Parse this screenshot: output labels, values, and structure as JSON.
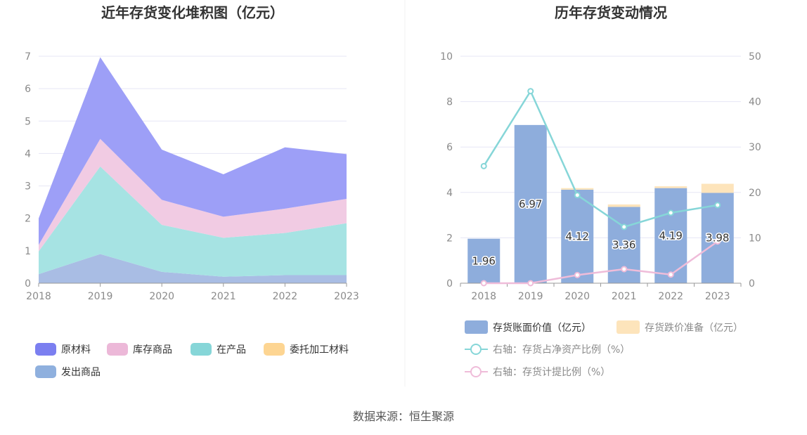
{
  "source_text": "数据来源：恒生聚源",
  "chart_data": [
    {
      "type": "area",
      "stacked": true,
      "title": "近年存货变化堆积图（亿元）",
      "categories": [
        "2018",
        "2019",
        "2020",
        "2021",
        "2022",
        "2023"
      ],
      "ylim": [
        0,
        7
      ],
      "yticks": [
        0,
        1,
        2,
        3,
        4,
        5,
        6,
        7
      ],
      "grid": true,
      "legend_position": "bottom",
      "series": [
        {
          "name": "发出商品",
          "values": [
            0.28,
            0.9,
            0.35,
            0.2,
            0.25,
            0.25
          ],
          "color": "#a9bde4"
        },
        {
          "name": "委托加工材料",
          "values": [
            0.0,
            0.0,
            0.0,
            0.0,
            0.0,
            0.0
          ],
          "color": "#fdd592"
        },
        {
          "name": "在产品",
          "values": [
            0.7,
            2.7,
            1.45,
            1.2,
            1.3,
            1.6
          ],
          "color": "#a6e3e3"
        },
        {
          "name": "库存商品",
          "values": [
            0.2,
            0.85,
            0.77,
            0.65,
            0.75,
            0.75
          ],
          "color": "#f1cbe3"
        },
        {
          "name": "原材料",
          "values": [
            0.82,
            2.52,
            1.55,
            1.31,
            1.89,
            1.38
          ],
          "color": "#9d9ff7"
        }
      ],
      "legend": [
        {
          "name": "原材料",
          "color": "#7b7ff0"
        },
        {
          "name": "库存商品",
          "color": "#ecb8d8"
        },
        {
          "name": "在产品",
          "color": "#86d6d8"
        },
        {
          "name": "委托加工材料",
          "color": "#fdd592"
        },
        {
          "name": "发出商品",
          "color": "#8fb0de"
        }
      ]
    },
    {
      "type": "bar",
      "title": "历年存货变动情况",
      "categories": [
        "2018",
        "2019",
        "2020",
        "2021",
        "2022",
        "2023"
      ],
      "ylim": [
        0,
        10
      ],
      "yticks": [
        0,
        2,
        4,
        6,
        8,
        10
      ],
      "ylim_right": [
        0,
        50
      ],
      "yticks_right": [
        0,
        10,
        20,
        30,
        40,
        50
      ],
      "grid": true,
      "legend_position": "bottom",
      "series": [
        {
          "name": "存货账面价值（亿元）",
          "kind": "bar",
          "axis": "left",
          "values": [
            1.96,
            6.97,
            4.12,
            3.36,
            4.19,
            3.98
          ],
          "labels": [
            "1.96",
            "6.97",
            "4.12",
            "3.36",
            "4.19",
            "3.98"
          ],
          "color": "#8eaddc"
        },
        {
          "name": "存货跌价准备（亿元）",
          "kind": "bar-stack",
          "axis": "left",
          "values": [
            0.0,
            0.0,
            0.07,
            0.11,
            0.08,
            0.4
          ],
          "color": "#fde4bb"
        },
        {
          "name": "右轴：存货占净资产比例（%）",
          "kind": "line",
          "axis": "right",
          "values": [
            25.8,
            42.3,
            19.4,
            12.4,
            15.5,
            17.2
          ],
          "color": "#86d6d8"
        },
        {
          "name": "右轴：存货计提比例（%）",
          "kind": "line",
          "axis": "right",
          "values": [
            0.0,
            0.0,
            1.8,
            3.1,
            1.9,
            9.2
          ],
          "color": "#efbcd9"
        }
      ]
    }
  ]
}
